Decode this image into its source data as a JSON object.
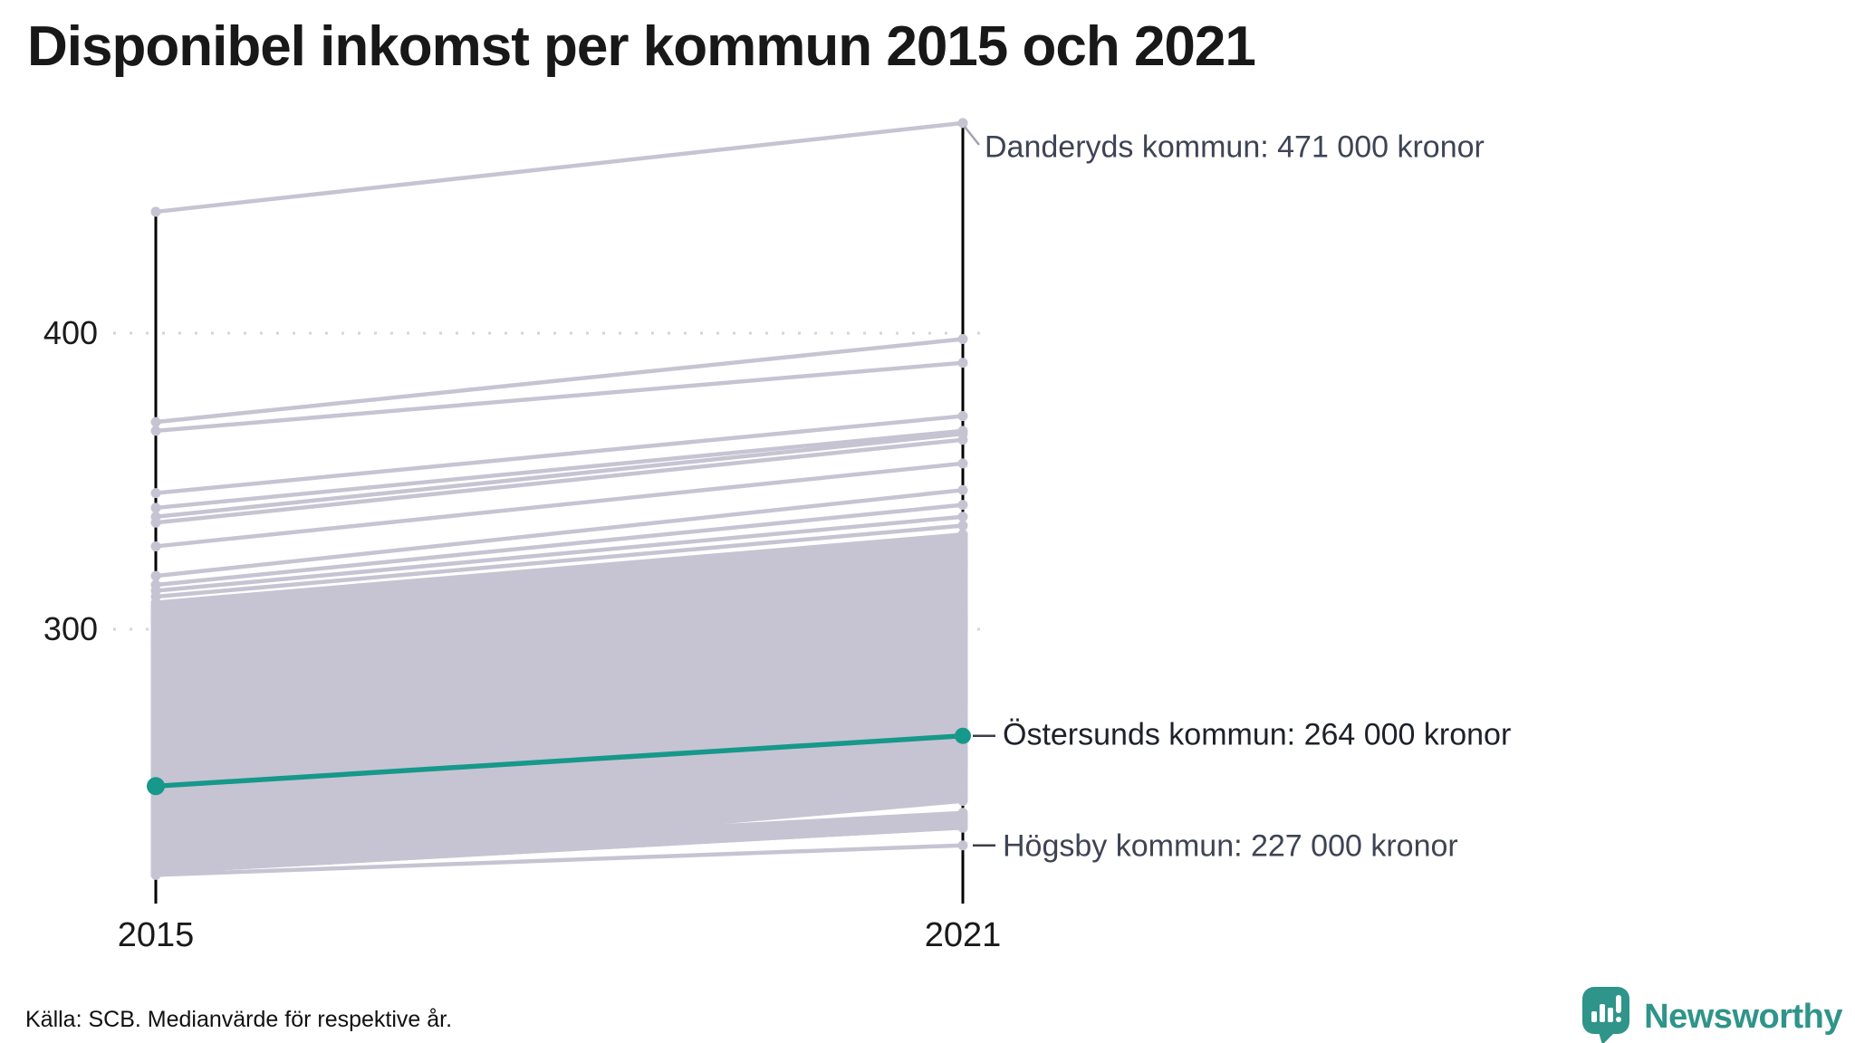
{
  "title": "Disponibel inkomst per kommun 2015 och 2021",
  "footer": {
    "source": "Källa: SCB. Medianvärde för respektive år."
  },
  "branding": {
    "name": "Newsworthy",
    "color": "#2f9489"
  },
  "chart_data": {
    "type": "line",
    "variant": "slopegraph",
    "title": "Disponibel inkomst per kommun 2015 och 2021",
    "x": [
      2015,
      2021
    ],
    "x_labels": [
      "2015",
      "2021"
    ],
    "y_ticks": [
      {
        "value": 400,
        "label": "400"
      },
      {
        "value": 300,
        "label": "300"
      }
    ],
    "grid": "dotted-horizontal",
    "ylim_visible": [
      217,
      471
    ],
    "annotations": [
      {
        "text": "Danderyds kommun: 471 000 kronor",
        "municipality": "Danderyds kommun",
        "year": 2021,
        "value": 471
      },
      {
        "text": "Östersunds kommun: 264 000 kronor",
        "municipality": "Östersunds kommun",
        "year": 2021,
        "value": 264
      },
      {
        "text": "Högsby kommun: 227 000 kronor",
        "municipality": "Högsby kommun",
        "year": 2021,
        "value": 227
      }
    ],
    "highlight_series": {
      "name": "Östersunds kommun",
      "values": [
        247,
        264
      ],
      "color": "#16988a"
    },
    "background_series": {
      "color": "#c6c4d2",
      "description": "all other municipalities, unlabeled",
      "distinct_lines": [
        [
          441,
          471
        ],
        [
          370,
          398
        ],
        [
          367,
          390
        ],
        [
          346,
          372
        ],
        [
          341,
          367
        ],
        [
          338,
          366
        ],
        [
          336,
          364
        ],
        [
          328,
          356
        ],
        [
          318,
          347
        ],
        [
          315,
          342
        ],
        [
          313,
          338
        ],
        [
          311,
          335
        ],
        [
          309,
          332
        ],
        [
          307,
          329
        ],
        [
          305,
          327
        ],
        [
          303,
          324
        ],
        [
          300,
          322
        ],
        [
          298,
          319
        ],
        [
          296,
          317
        ],
        [
          217,
          227
        ],
        [
          218,
          233
        ],
        [
          220,
          236
        ]
      ],
      "dense_band": {
        "count": 185,
        "start": 218,
        "range": 91,
        "step": 37,
        "delta_base": 15,
        "delta_range": 16,
        "delta_step": 11
      }
    }
  }
}
